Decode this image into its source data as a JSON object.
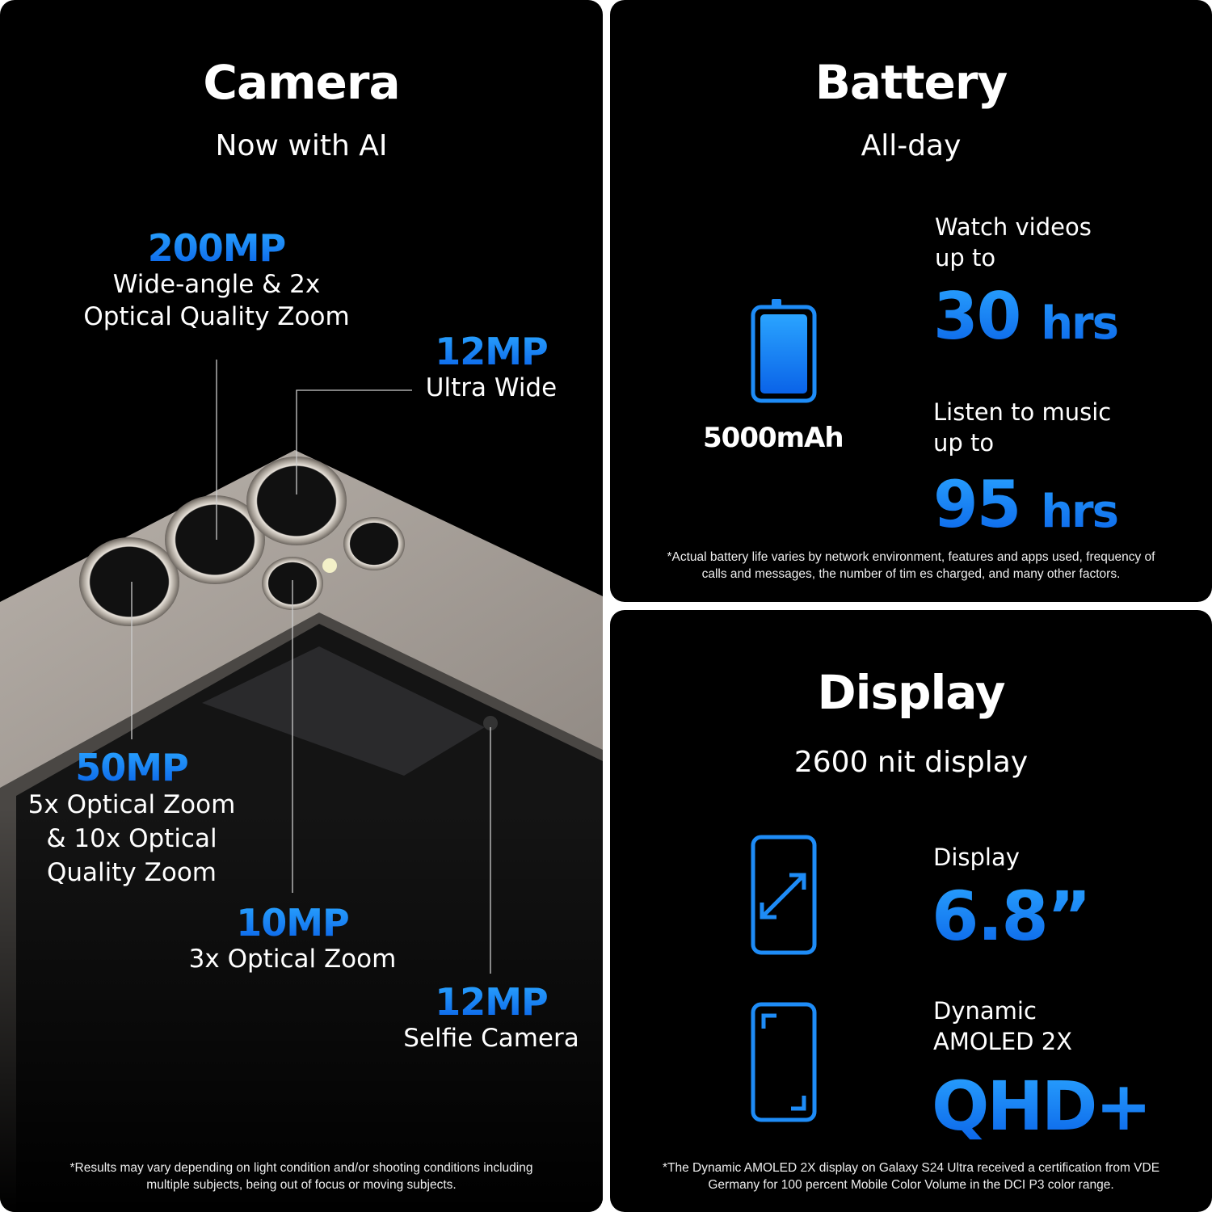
{
  "camera": {
    "title": "Camera",
    "subtitle": "Now with AI",
    "lenses": [
      {
        "mp": "200MP",
        "desc": [
          "Wide-angle & 2x",
          "Optical Quality Zoom"
        ]
      },
      {
        "mp": "12MP",
        "desc": [
          "Ultra Wide"
        ]
      },
      {
        "mp": "50MP",
        "desc": [
          "5x Optical Zoom",
          "& 10x Optical",
          "Quality Zoom"
        ]
      },
      {
        "mp": "10MP",
        "desc": [
          "3x Optical Zoom"
        ]
      },
      {
        "mp": "12MP",
        "desc": [
          "Selfie Camera"
        ]
      }
    ],
    "footnote": [
      "*Results may vary depending on light condition and/or shooting conditions including",
      "multiple subjects, being out of focus or moving subjects."
    ]
  },
  "battery": {
    "title": "Battery",
    "subtitle": "All-day",
    "capacity": "5000mAh",
    "video_label": [
      "Watch videos",
      "up to"
    ],
    "video_value": "30",
    "video_unit": "hrs",
    "music_label": [
      "Listen to music",
      "up to"
    ],
    "music_value": "95",
    "music_unit": "hrs",
    "icon": "battery-icon",
    "footnote": [
      "*Actual battery life varies by network environment, features and apps used, frequency of",
      "calls and messages, the number of tim es charged, and many other factors."
    ]
  },
  "display": {
    "title": "Display",
    "subtitle": "2600 nit display",
    "size_label": "Display",
    "size_value": "6.8”",
    "type_label": [
      "Dynamic",
      "AMOLED 2X"
    ],
    "type_value": "QHD+",
    "footnote": [
      "*The Dynamic AMOLED 2X display on Galaxy S24 Ultra received a certification from VDE",
      "Germany for 100 percent Mobile Color Volume in the DCI P3 color range."
    ]
  },
  "colors": {
    "accent": "#1e8cf7",
    "background": "#000000"
  }
}
